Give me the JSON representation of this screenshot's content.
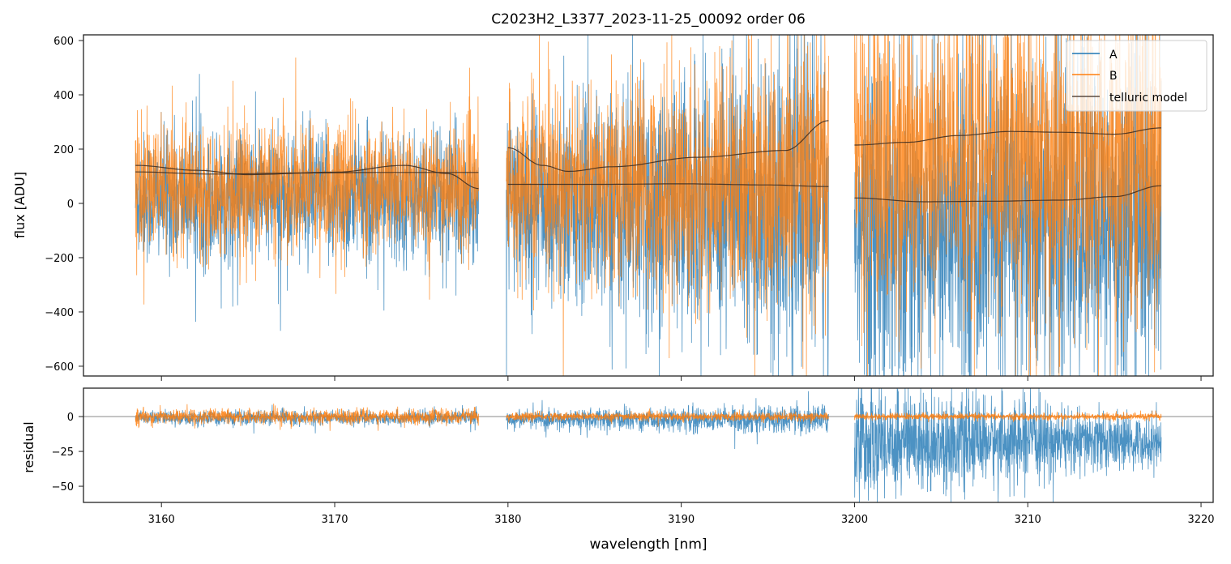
{
  "chart_data": [
    {
      "type": "line",
      "title": "C2023H2_L3377_2023-11-25_00092  order 06",
      "xlabel": "wavelength [nm]",
      "ylabel": "flux [ADU]",
      "xlim": [
        3155.5,
        3220.7
      ],
      "ylim": [
        -636,
        621
      ],
      "yticks": [
        600,
        400,
        200,
        0,
        -200,
        -400,
        -600
      ],
      "ytick_labels": [
        "600",
        "400",
        "200",
        "0",
        "−200",
        "−400",
        "−600"
      ],
      "xticks": [
        3160,
        3170,
        3180,
        3190,
        3200,
        3210,
        3220
      ],
      "legend": {
        "position": "top-right",
        "entries": [
          "A",
          "B",
          "telluric model"
        ]
      },
      "colors": {
        "A": "#1f77b4",
        "B": "#ff7f0e",
        "model": "#3a2a20"
      },
      "segments": [
        {
          "x": [
            3158.5,
            3178.3
          ],
          "A": {
            "mean": 20,
            "std": 120
          },
          "B": {
            "mean": 60,
            "std": 115
          }
        },
        {
          "x": [
            3179.9,
            3198.5
          ],
          "A": {
            "mean": 0,
            "std": 150,
            "std_end": 300
          },
          "B": {
            "mean": 60,
            "std": 140,
            "std_end": 260
          }
        },
        {
          "x": [
            3200.0,
            3217.7
          ],
          "A": {
            "mean": -80,
            "std": 300
          },
          "B": {
            "mean": 170,
            "std": 280
          }
        }
      ],
      "models": [
        {
          "x": [
            3158.5,
            3162,
            3165,
            3170,
            3174,
            3176.5,
            3178.3
          ],
          "y": [
            140,
            122,
            106,
            115,
            140,
            110,
            55
          ]
        },
        {
          "x": [
            3158.5,
            3163,
            3168,
            3173,
            3178.3
          ],
          "y": [
            116,
            108,
            112,
            114,
            114
          ]
        },
        {
          "x": [
            3180.0,
            3182,
            3183.5,
            3186,
            3191,
            3196,
            3198.5
          ],
          "y": [
            205,
            140,
            118,
            135,
            170,
            195,
            305
          ]
        },
        {
          "x": [
            3180.0,
            3185,
            3190,
            3195,
            3198.5
          ],
          "y": [
            70,
            70,
            72,
            68,
            62
          ]
        },
        {
          "x": [
            3200.0,
            3203,
            3206,
            3209,
            3212,
            3215,
            3217.7
          ],
          "y": [
            215,
            225,
            250,
            265,
            262,
            255,
            278
          ]
        },
        {
          "x": [
            3200.0,
            3204,
            3208,
            3212,
            3215,
            3217.7
          ],
          "y": [
            20,
            6,
            8,
            12,
            25,
            65
          ]
        }
      ]
    },
    {
      "type": "line",
      "xlabel": "wavelength [nm]",
      "ylabel": "residual",
      "xlim": [
        3155.5,
        3220.7
      ],
      "ylim": [
        -61.6,
        20.4
      ],
      "yticks": [
        0,
        -25,
        -50
      ],
      "ytick_labels": [
        "0",
        "−25",
        "−50"
      ],
      "xticks": [
        3160,
        3170,
        3180,
        3190,
        3200,
        3210,
        3220
      ],
      "xtick_labels": [
        "3160",
        "3170",
        "3180",
        "3190",
        "3200",
        "3210",
        "3220"
      ],
      "zero_line": 0,
      "segments": [
        {
          "x": [
            3158.5,
            3178.3
          ],
          "A": {
            "mean": -1,
            "std": 2.5
          },
          "B": {
            "mean": 0,
            "std": 2.5
          }
        },
        {
          "x": [
            3179.9,
            3198.5
          ],
          "A": {
            "mean": -2,
            "std": 3,
            "std_end": 5
          },
          "B": {
            "mean": 0,
            "std": 1.5
          }
        },
        {
          "x": [
            3200.0,
            3217.7
          ],
          "A": {
            "mean": -18,
            "std": 20,
            "std_end": 8
          },
          "B": {
            "mean": 0,
            "std": 1.2
          }
        }
      ]
    }
  ]
}
